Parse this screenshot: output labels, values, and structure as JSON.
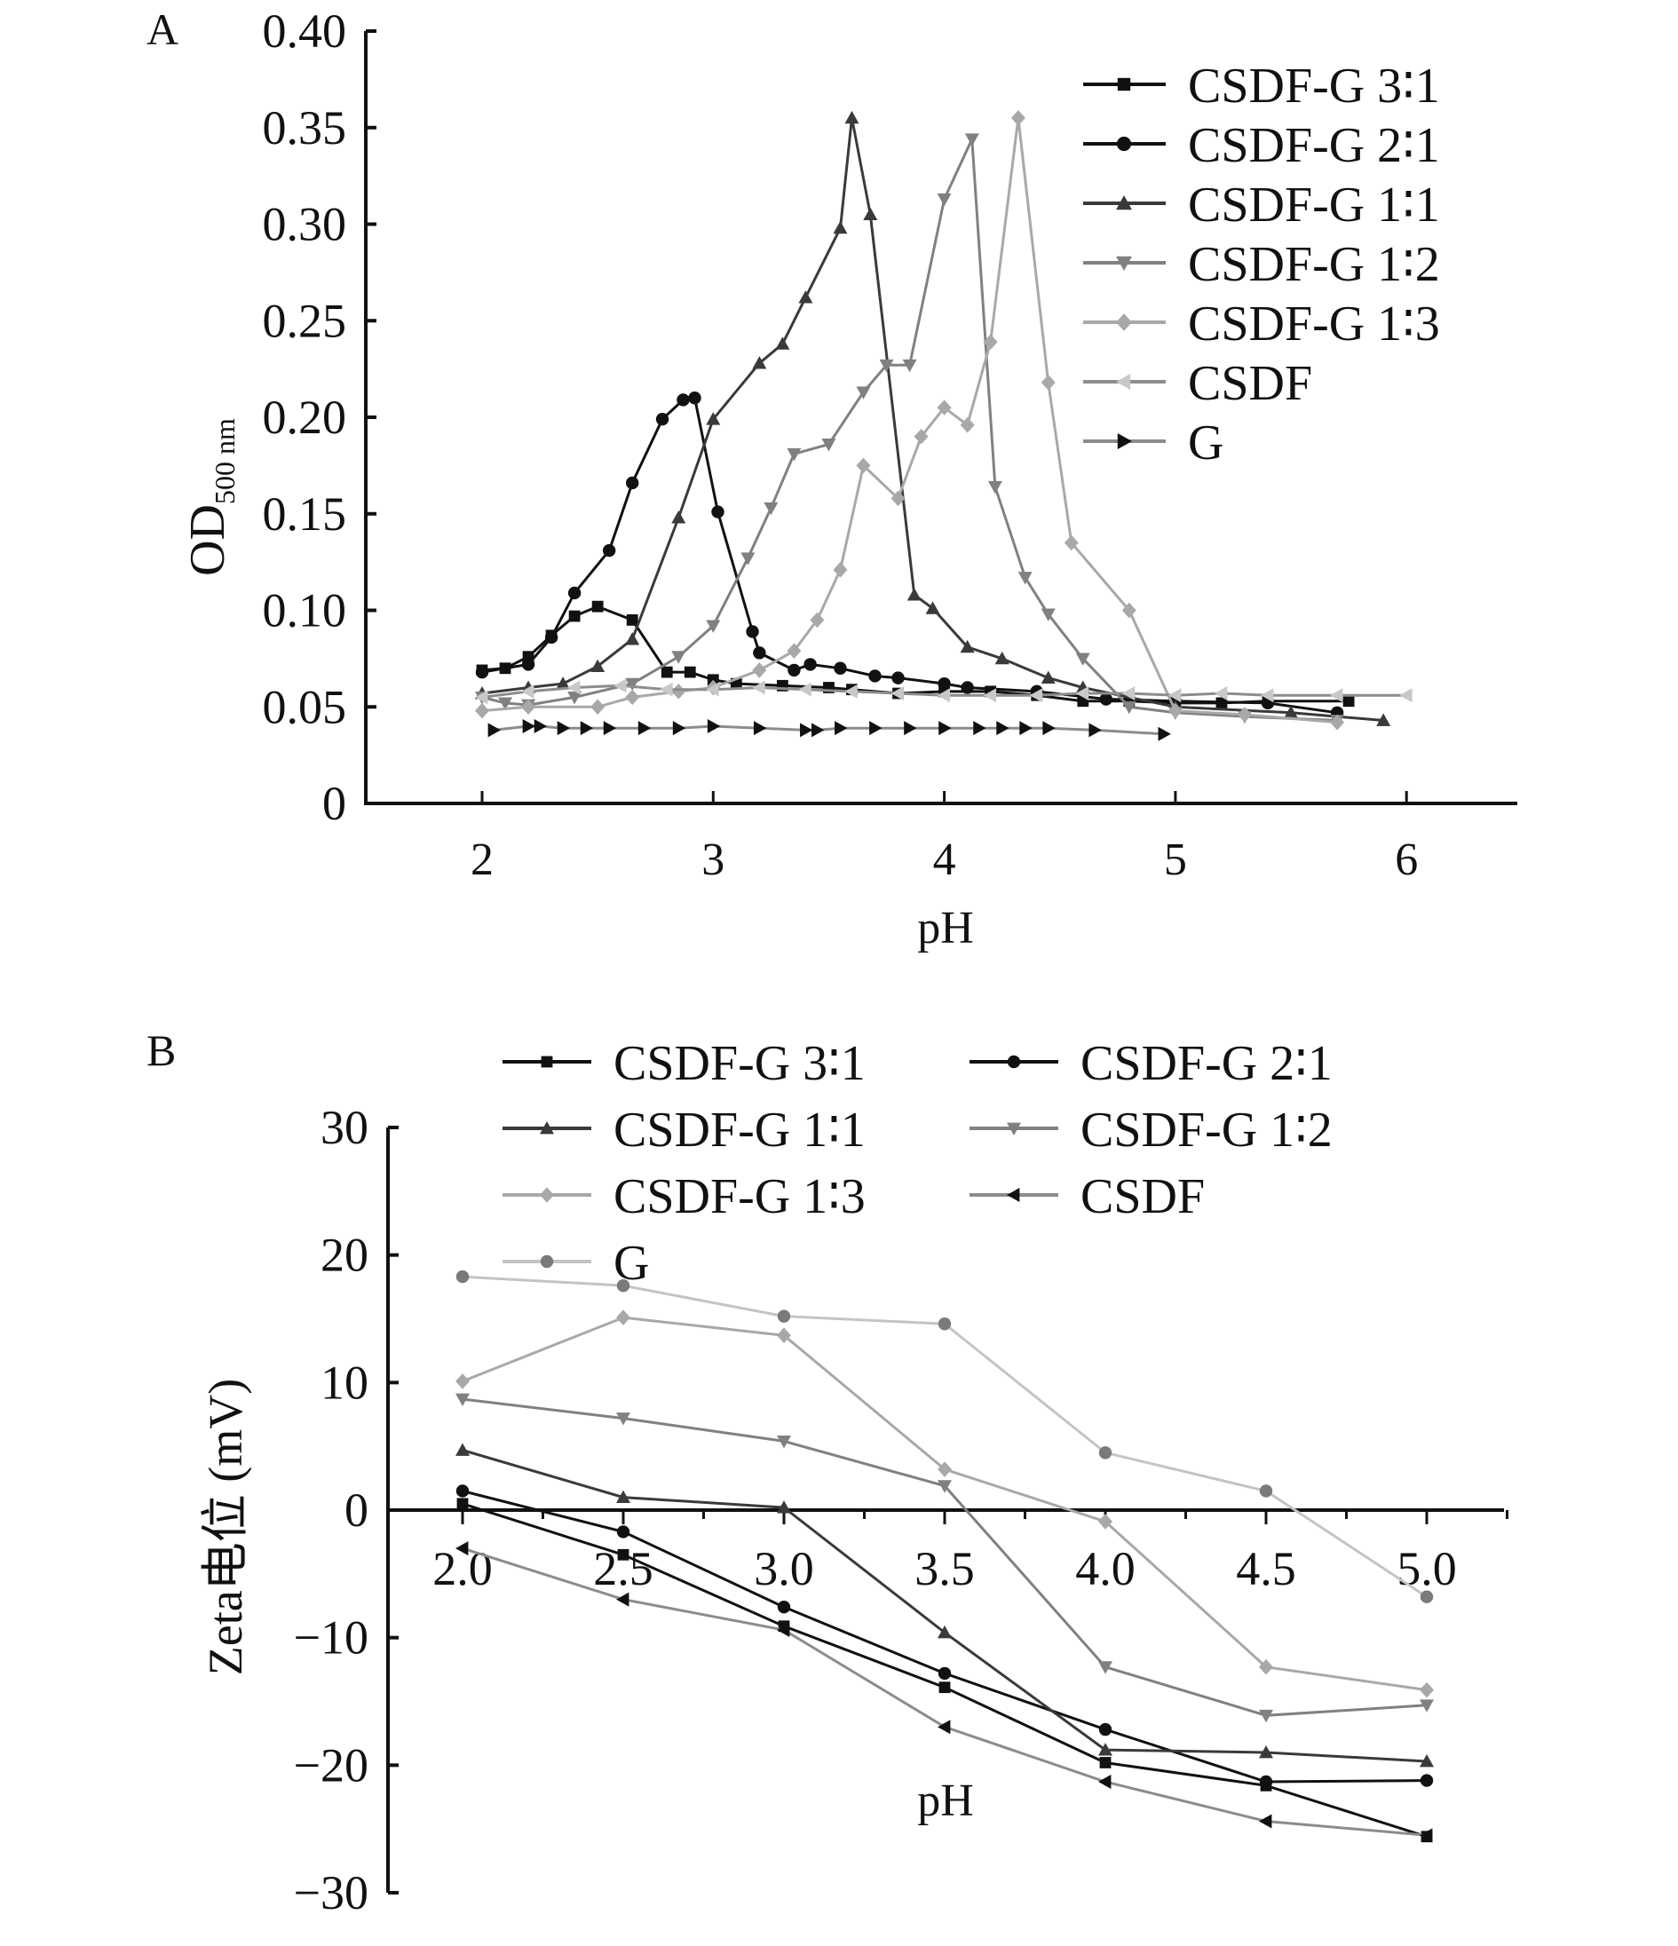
{
  "chart_data": [
    {
      "panel": "A",
      "type": "line",
      "xlabel": "pH",
      "ylabel": "OD",
      "ylabel_sub": "500 nm",
      "xlim": [
        1.5,
        6.5
      ],
      "ylim": [
        0,
        0.4
      ],
      "xticks": [
        "2",
        "3",
        "4",
        "5",
        "6"
      ],
      "xtick_values": [
        2,
        3,
        4,
        5,
        6
      ],
      "yticks": [
        "0",
        "0.05",
        "0.10",
        "0.15",
        "0.20",
        "0.25",
        "0.30",
        "0.35",
        "0.40"
      ],
      "ytick_values": [
        0,
        0.05,
        0.1,
        0.15,
        0.2,
        0.25,
        0.3,
        0.35,
        0.4
      ],
      "legend_position": "top-right",
      "series": [
        {
          "name": "CSDF-G 3∶1",
          "marker": "square",
          "color": "#111111",
          "x": [
            2.0,
            2.1,
            2.2,
            2.3,
            2.4,
            2.5,
            2.65,
            2.8,
            2.9,
            3.0,
            3.1,
            3.3,
            3.5,
            3.6,
            3.8,
            4.0,
            4.2,
            4.4,
            4.6,
            4.8,
            5.0,
            5.2,
            5.4,
            5.75
          ],
          "y": [
            0.069,
            0.07,
            0.076,
            0.087,
            0.097,
            0.102,
            0.095,
            0.068,
            0.068,
            0.064,
            0.062,
            0.061,
            0.06,
            0.059,
            0.057,
            0.058,
            0.058,
            0.056,
            0.053,
            0.053,
            0.052,
            0.052,
            0.053,
            0.053
          ]
        },
        {
          "name": "CSDF-G 2∶1",
          "marker": "circle",
          "color": "#111111",
          "x": [
            2.0,
            2.2,
            2.3,
            2.4,
            2.55,
            2.65,
            2.78,
            2.87,
            2.92,
            3.02,
            3.17,
            3.2,
            3.35,
            3.42,
            3.55,
            3.7,
            3.8,
            4.0,
            4.1,
            4.4,
            4.7,
            5.0,
            5.4,
            5.7
          ],
          "y": [
            0.068,
            0.072,
            0.086,
            0.109,
            0.131,
            0.166,
            0.199,
            0.209,
            0.21,
            0.151,
            0.089,
            0.078,
            0.069,
            0.072,
            0.07,
            0.066,
            0.065,
            0.062,
            0.06,
            0.058,
            0.054,
            0.053,
            0.052,
            0.047
          ]
        },
        {
          "name": "CSDF-G 1∶1",
          "marker": "triangle-up",
          "color": "#3a3a3a",
          "x": [
            2.0,
            2.2,
            2.35,
            2.5,
            2.65,
            2.85,
            3.0,
            3.2,
            3.3,
            3.4,
            3.55,
            3.6,
            3.68,
            3.87,
            3.95,
            4.1,
            4.25,
            4.45,
            4.6,
            5.0,
            5.5,
            5.9
          ],
          "y": [
            0.057,
            0.06,
            0.062,
            0.071,
            0.085,
            0.148,
            0.199,
            0.228,
            0.238,
            0.262,
            0.298,
            0.355,
            0.305,
            0.108,
            0.101,
            0.081,
            0.075,
            0.065,
            0.06,
            0.05,
            0.047,
            0.043
          ]
        },
        {
          "name": "CSDF-G 1∶2",
          "marker": "triangle-down",
          "color": "#808080",
          "x": [
            2.0,
            2.1,
            2.2,
            2.4,
            2.65,
            2.85,
            3.0,
            3.15,
            3.25,
            3.35,
            3.5,
            3.65,
            3.75,
            3.85,
            4.0,
            4.12,
            4.22,
            4.35,
            4.45,
            4.6,
            4.8,
            5.0,
            5.3,
            5.7
          ],
          "y": [
            0.055,
            0.052,
            0.051,
            0.055,
            0.062,
            0.076,
            0.092,
            0.127,
            0.153,
            0.181,
            0.186,
            0.213,
            0.227,
            0.227,
            0.313,
            0.344,
            0.164,
            0.117,
            0.098,
            0.075,
            0.05,
            0.047,
            0.045,
            0.043
          ]
        },
        {
          "name": "CSDF-G 1∶3",
          "marker": "diamond",
          "color": "#a8a8a8",
          "x": [
            2.0,
            2.2,
            2.5,
            2.65,
            2.85,
            3.0,
            3.2,
            3.35,
            3.45,
            3.55,
            3.65,
            3.8,
            3.9,
            4.0,
            4.1,
            4.2,
            4.32,
            4.45,
            4.55,
            4.8,
            5.0,
            5.3,
            5.7
          ],
          "y": [
            0.048,
            0.05,
            0.05,
            0.055,
            0.058,
            0.06,
            0.069,
            0.079,
            0.095,
            0.121,
            0.175,
            0.158,
            0.19,
            0.205,
            0.196,
            0.239,
            0.355,
            0.218,
            0.135,
            0.1,
            0.048,
            0.046,
            0.042
          ]
        },
        {
          "name": "CSDF",
          "marker": "triangle-left",
          "color": "#c8c8c8",
          "line_color": "#8c8c8c",
          "x": [
            2.0,
            2.2,
            2.4,
            2.6,
            2.8,
            3.0,
            3.2,
            3.4,
            3.6,
            3.8,
            4.0,
            4.2,
            4.4,
            4.6,
            4.8,
            5.0,
            5.2,
            5.4,
            5.7,
            6.0
          ],
          "y": [
            0.055,
            0.058,
            0.06,
            0.061,
            0.059,
            0.059,
            0.06,
            0.059,
            0.058,
            0.057,
            0.056,
            0.056,
            0.056,
            0.057,
            0.057,
            0.056,
            0.057,
            0.056,
            0.056,
            0.056
          ]
        },
        {
          "name": "G",
          "marker": "triangle-right",
          "color": "#111111",
          "line_color": "#8c8c8c",
          "x": [
            2.05,
            2.2,
            2.25,
            2.35,
            2.45,
            2.55,
            2.7,
            2.85,
            3.0,
            3.2,
            3.4,
            3.45,
            3.55,
            3.7,
            3.85,
            4.0,
            4.15,
            4.25,
            4.35,
            4.45,
            4.65,
            4.95
          ],
          "y": [
            0.038,
            0.04,
            0.04,
            0.039,
            0.039,
            0.039,
            0.039,
            0.039,
            0.04,
            0.039,
            0.038,
            0.038,
            0.039,
            0.039,
            0.039,
            0.039,
            0.039,
            0.039,
            0.039,
            0.039,
            0.038,
            0.036
          ]
        }
      ]
    },
    {
      "panel": "B",
      "type": "line",
      "xlabel": "pH",
      "ylabel": "Zeta电位 (mV)",
      "xlim": [
        1.75,
        5.35
      ],
      "ylim": [
        -30,
        30
      ],
      "xticks": [
        "2.0",
        "2.5",
        "3.0",
        "3.5",
        "4.0",
        "4.5",
        "5.0"
      ],
      "xtick_values": [
        2.0,
        2.5,
        3.0,
        3.5,
        4.0,
        4.5,
        5.0
      ],
      "yticks": [
        "−30",
        "−20",
        "−10",
        "0",
        "10",
        "20",
        "30"
      ],
      "ytick_values": [
        -30,
        -20,
        -10,
        0,
        10,
        20,
        30
      ],
      "legend_position": "top (two columns)",
      "x": [
        2.0,
        2.5,
        3.0,
        3.5,
        4.0,
        4.5,
        5.0
      ],
      "series": [
        {
          "name": "CSDF-G 3∶1",
          "marker": "square",
          "color": "#111111",
          "values": [
            0.5,
            -3.5,
            -9.1,
            -13.9,
            -19.8,
            -21.6,
            -25.6
          ]
        },
        {
          "name": "CSDF-G 2∶1",
          "marker": "circle",
          "color": "#111111",
          "values": [
            1.5,
            -1.7,
            -7.6,
            -12.8,
            -17.2,
            -21.3,
            -21.2
          ]
        },
        {
          "name": "CSDF-G 1∶1",
          "marker": "triangle-up",
          "color": "#3a3a3a",
          "values": [
            4.7,
            1.0,
            0.2,
            -9.6,
            -18.8,
            -19.0,
            -19.7
          ]
        },
        {
          "name": "CSDF-G 1∶2",
          "marker": "triangle-down",
          "color": "#808080",
          "values": [
            8.7,
            7.2,
            5.4,
            1.9,
            -12.3,
            -16.1,
            -15.3
          ]
        },
        {
          "name": "CSDF-G 1∶3",
          "marker": "diamond",
          "color": "#a8a8a8",
          "values": [
            10.1,
            15.1,
            13.7,
            3.2,
            -0.9,
            -12.3,
            -14.1
          ]
        },
        {
          "name": "CSDF",
          "marker": "triangle-left",
          "color": "#111111",
          "line_color": "#8c8c8c",
          "values": [
            -3.0,
            -7.0,
            -9.4,
            -17.0,
            -21.3,
            -24.4,
            -25.5
          ]
        },
        {
          "name": "G",
          "marker": "circle",
          "color": "#7a7a7a",
          "line_color": "#c4c4c4",
          "values": [
            18.3,
            17.6,
            15.2,
            14.6,
            4.5,
            1.5,
            -6.8
          ]
        }
      ]
    }
  ]
}
